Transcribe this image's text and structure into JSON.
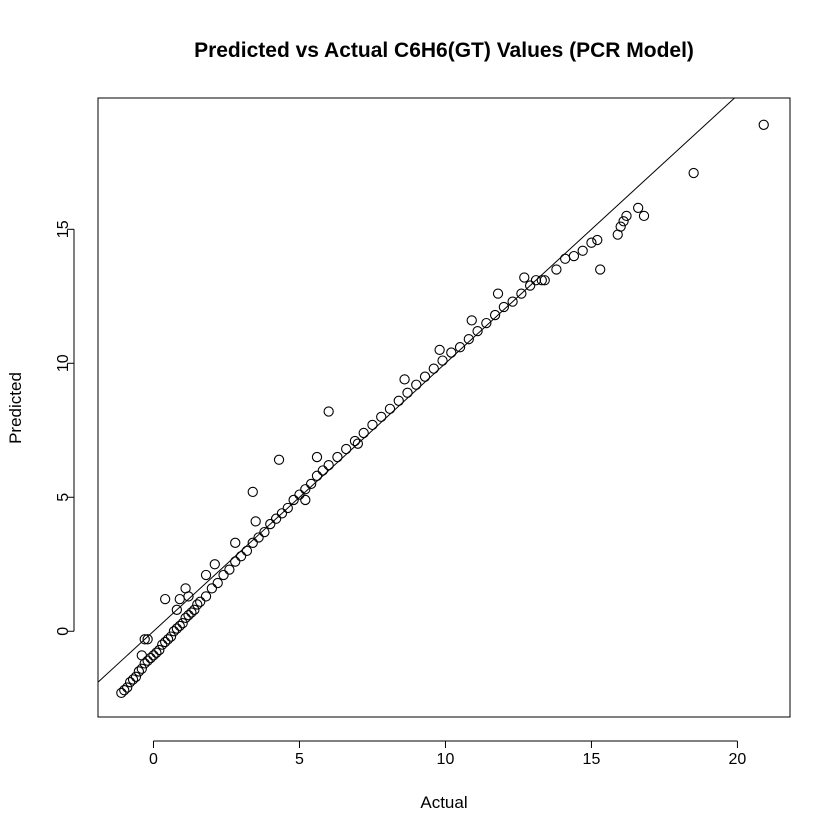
{
  "chart_data": {
    "type": "scatter",
    "title": "Predicted vs Actual C6H6(GT) Values (PCR Model)",
    "xlabel": "Actual",
    "ylabel": "Predicted",
    "xlim": [
      -1.9,
      21.8
    ],
    "ylim": [
      -3.2,
      19.9
    ],
    "xticks": [
      0,
      5,
      10,
      15,
      20
    ],
    "yticks": [
      0,
      5,
      10,
      15
    ],
    "reference_line": {
      "type": "identity",
      "slope": 1,
      "intercept": 0
    },
    "grid": false,
    "legend": "none",
    "series": [
      {
        "points": [
          [
            -1.1,
            -2.3
          ],
          [
            -1.0,
            -2.2
          ],
          [
            -0.9,
            -2.1
          ],
          [
            -0.8,
            -1.9
          ],
          [
            -0.7,
            -1.8
          ],
          [
            -0.6,
            -1.7
          ],
          [
            -0.5,
            -1.5
          ],
          [
            -0.4,
            -1.4
          ],
          [
            -0.3,
            -1.2
          ],
          [
            -0.2,
            -1.1
          ],
          [
            -0.1,
            -1.0
          ],
          [
            0.0,
            -0.9
          ],
          [
            0.1,
            -0.8
          ],
          [
            0.2,
            -0.7
          ],
          [
            0.3,
            -0.5
          ],
          [
            0.4,
            -0.4
          ],
          [
            0.5,
            -0.3
          ],
          [
            0.6,
            -0.2
          ],
          [
            0.7,
            0.0
          ],
          [
            0.8,
            0.1
          ],
          [
            0.9,
            0.2
          ],
          [
            1.0,
            0.3
          ],
          [
            1.1,
            0.5
          ],
          [
            1.2,
            0.6
          ],
          [
            1.3,
            0.7
          ],
          [
            1.4,
            0.8
          ],
          [
            1.5,
            1.0
          ],
          [
            1.6,
            1.1
          ],
          [
            1.8,
            1.3
          ],
          [
            2.0,
            1.6
          ],
          [
            2.2,
            1.8
          ],
          [
            2.4,
            2.1
          ],
          [
            2.6,
            2.3
          ],
          [
            2.8,
            2.6
          ],
          [
            3.0,
            2.8
          ],
          [
            3.2,
            3.0
          ],
          [
            3.4,
            3.3
          ],
          [
            3.6,
            3.5
          ],
          [
            3.8,
            3.7
          ],
          [
            4.0,
            4.0
          ],
          [
            4.2,
            4.2
          ],
          [
            4.4,
            4.4
          ],
          [
            4.6,
            4.6
          ],
          [
            4.8,
            4.9
          ],
          [
            5.0,
            5.1
          ],
          [
            5.2,
            5.3
          ],
          [
            5.4,
            5.5
          ],
          [
            5.6,
            5.8
          ],
          [
            5.8,
            6.0
          ],
          [
            6.0,
            6.2
          ],
          [
            6.3,
            6.5
          ],
          [
            6.6,
            6.8
          ],
          [
            6.9,
            7.1
          ],
          [
            7.2,
            7.4
          ],
          [
            7.5,
            7.7
          ],
          [
            7.8,
            8.0
          ],
          [
            8.1,
            8.3
          ],
          [
            8.4,
            8.6
          ],
          [
            8.7,
            8.9
          ],
          [
            9.0,
            9.2
          ],
          [
            9.3,
            9.5
          ],
          [
            9.6,
            9.8
          ],
          [
            9.9,
            10.1
          ],
          [
            10.2,
            10.4
          ],
          [
            10.5,
            10.6
          ],
          [
            10.8,
            10.9
          ],
          [
            11.1,
            11.2
          ],
          [
            11.4,
            11.5
          ],
          [
            11.7,
            11.8
          ],
          [
            12.0,
            12.1
          ],
          [
            12.3,
            12.3
          ],
          [
            12.6,
            12.6
          ],
          [
            12.9,
            12.9
          ],
          [
            13.1,
            13.1
          ],
          [
            13.4,
            13.1
          ],
          [
            13.8,
            13.5
          ],
          [
            14.1,
            13.9
          ],
          [
            14.4,
            14.0
          ],
          [
            14.7,
            14.2
          ],
          [
            15.0,
            14.5
          ],
          [
            15.3,
            13.5
          ],
          [
            15.2,
            14.6
          ],
          [
            15.9,
            14.8
          ],
          [
            16.0,
            15.1
          ],
          [
            16.1,
            15.3
          ],
          [
            16.2,
            15.5
          ],
          [
            16.6,
            15.8
          ],
          [
            16.8,
            15.5
          ],
          [
            18.5,
            17.1
          ],
          [
            20.9,
            18.9
          ],
          [
            -0.4,
            -0.9
          ],
          [
            -0.3,
            -0.3
          ],
          [
            -0.2,
            -0.3
          ],
          [
            0.4,
            1.2
          ],
          [
            0.8,
            0.8
          ],
          [
            0.9,
            1.2
          ],
          [
            1.1,
            1.6
          ],
          [
            1.2,
            1.3
          ],
          [
            1.8,
            2.1
          ],
          [
            2.1,
            2.5
          ],
          [
            2.8,
            3.3
          ],
          [
            3.4,
            5.2
          ],
          [
            3.5,
            4.1
          ],
          [
            4.3,
            6.4
          ],
          [
            5.6,
            6.5
          ],
          [
            6.0,
            8.2
          ],
          [
            8.6,
            9.4
          ],
          [
            9.8,
            10.5
          ],
          [
            10.9,
            11.6
          ],
          [
            11.8,
            12.6
          ],
          [
            12.7,
            13.2
          ],
          [
            13.3,
            13.1
          ],
          [
            5.2,
            4.9
          ],
          [
            7.0,
            7.0
          ]
        ]
      }
    ]
  }
}
